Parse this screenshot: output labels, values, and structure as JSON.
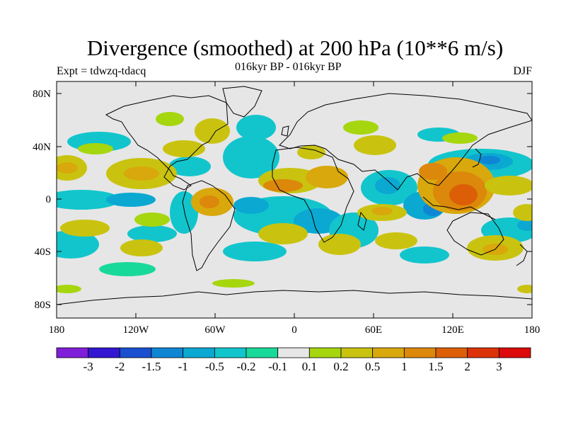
{
  "title": "Divergence (smoothed) at 200 hPa (10**6 m/s)",
  "subtitle": "016kyr BP - 016kyr BP",
  "expt_label": "Expt = tdwzq-tdacq",
  "season": "DJF",
  "lat_ticks": [
    "80N",
    "40N",
    "0",
    "40S",
    "80S"
  ],
  "lon_ticks": [
    "180",
    "120W",
    "60W",
    "0",
    "60E",
    "120E",
    "180"
  ],
  "colorbar": {
    "labels": [
      "-3",
      "-2",
      "-1.5",
      "-1",
      "-0.5",
      "-0.2",
      "-0.1",
      "0.1",
      "0.2",
      "0.5",
      "1",
      "1.5",
      "2",
      "3"
    ],
    "colors": [
      "#7f1fd9",
      "#3316d1",
      "#1a4fd0",
      "#0e86d4",
      "#0ba8d2",
      "#12c5cc",
      "#19d99a",
      "#e6e6e6",
      "#a6d60e",
      "#c9c310",
      "#d8a80c",
      "#dc880a",
      "#dc5f08",
      "#dc3208",
      "#dc0a0a"
    ]
  },
  "map": {
    "background": "#e6e6e6",
    "coast_color": "#000000"
  }
}
